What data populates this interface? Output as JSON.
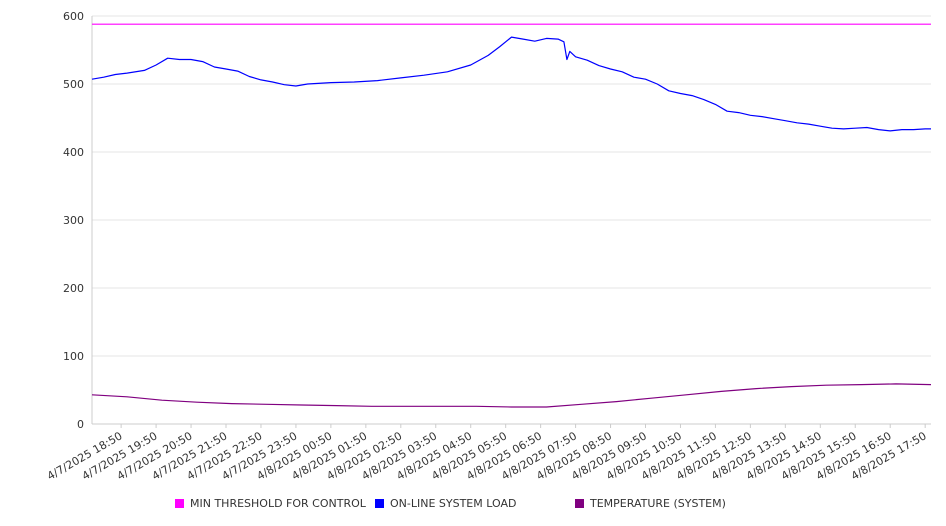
{
  "chart_data": {
    "type": "line",
    "y_ticks": [
      "0",
      "100",
      "200",
      "300",
      "400",
      "500",
      "600"
    ],
    "ylim": [
      0,
      600
    ],
    "grid": true,
    "legend_position": "bottom",
    "x_tick_labels": [
      "4/7/2025 18:50",
      "4/7/2025 19:50",
      "4/7/2025 20:50",
      "4/7/2025 21:50",
      "4/7/2025 22:50",
      "4/7/2025 23:50",
      "4/8/2025 00:50",
      "4/8/2025 01:50",
      "4/8/2025 02:50",
      "4/8/2025 03:50",
      "4/8/2025 04:50",
      "4/8/2025 05:50",
      "4/8/2025 06:50",
      "4/8/2025 07:50",
      "4/8/2025 08:50",
      "4/8/2025 09:50",
      "4/8/2025 10:50",
      "4/8/2025 11:50",
      "4/8/2025 12:50",
      "4/8/2025 13:50",
      "4/8/2025 14:50",
      "4/8/2025 15:50",
      "4/8/2025 16:50",
      "4/8/2025 17:50"
    ],
    "x_start": "4/7/2025 18:00",
    "x_end": "4/8/2025 18:00",
    "series": [
      {
        "name": "MIN THRESHOLD FOR CONTROL",
        "color": "#ff00ff",
        "points": [
          [
            "4/7/2025 18:00",
            588
          ],
          [
            "4/8/2025 18:00",
            588
          ]
        ]
      },
      {
        "name": "ON-LINE SYSTEM LOAD",
        "color": "#0000ff",
        "points": [
          [
            "4/7/2025 18:00",
            507
          ],
          [
            "4/7/2025 18:20",
            510
          ],
          [
            "4/7/2025 18:40",
            514
          ],
          [
            "4/7/2025 19:00",
            516
          ],
          [
            "4/7/2025 19:30",
            520
          ],
          [
            "4/7/2025 19:50",
            528
          ],
          [
            "4/7/2025 20:10",
            538
          ],
          [
            "4/7/2025 20:30",
            536
          ],
          [
            "4/7/2025 20:50",
            536
          ],
          [
            "4/7/2025 21:10",
            533
          ],
          [
            "4/7/2025 21:30",
            525
          ],
          [
            "4/7/2025 21:50",
            522
          ],
          [
            "4/7/2025 22:10",
            519
          ],
          [
            "4/7/2025 22:30",
            511
          ],
          [
            "4/7/2025 22:50",
            506
          ],
          [
            "4/7/2025 23:10",
            503
          ],
          [
            "4/7/2025 23:30",
            499
          ],
          [
            "4/7/2025 23:50",
            497
          ],
          [
            "4/8/2025 00:10",
            500
          ],
          [
            "4/8/2025 00:50",
            502
          ],
          [
            "4/8/2025 01:30",
            503
          ],
          [
            "4/8/2025 02:10",
            505
          ],
          [
            "4/8/2025 02:50",
            509
          ],
          [
            "4/8/2025 03:30",
            513
          ],
          [
            "4/8/2025 04:10",
            518
          ],
          [
            "4/8/2025 04:50",
            528
          ],
          [
            "4/8/2025 05:20",
            542
          ],
          [
            "4/8/2025 05:40",
            555
          ],
          [
            "4/8/2025 06:00",
            569
          ],
          [
            "4/8/2025 06:20",
            566
          ],
          [
            "4/8/2025 06:40",
            563
          ],
          [
            "4/8/2025 07:00",
            567
          ],
          [
            "4/8/2025 07:20",
            566
          ],
          [
            "4/8/2025 07:30",
            562
          ],
          [
            "4/8/2025 07:35",
            536
          ],
          [
            "4/8/2025 07:40",
            548
          ],
          [
            "4/8/2025 07:50",
            540
          ],
          [
            "4/8/2025 08:10",
            535
          ],
          [
            "4/8/2025 08:30",
            527
          ],
          [
            "4/8/2025 08:50",
            522
          ],
          [
            "4/8/2025 09:10",
            518
          ],
          [
            "4/8/2025 09:30",
            510
          ],
          [
            "4/8/2025 09:50",
            507
          ],
          [
            "4/8/2025 10:10",
            500
          ],
          [
            "4/8/2025 10:30",
            490
          ],
          [
            "4/8/2025 10:50",
            486
          ],
          [
            "4/8/2025 11:10",
            483
          ],
          [
            "4/8/2025 11:30",
            477
          ],
          [
            "4/8/2025 11:50",
            470
          ],
          [
            "4/8/2025 12:10",
            460
          ],
          [
            "4/8/2025 12:30",
            458
          ],
          [
            "4/8/2025 12:50",
            454
          ],
          [
            "4/8/2025 13:10",
            452
          ],
          [
            "4/8/2025 13:30",
            449
          ],
          [
            "4/8/2025 13:50",
            446
          ],
          [
            "4/8/2025 14:10",
            443
          ],
          [
            "4/8/2025 14:30",
            441
          ],
          [
            "4/8/2025 14:50",
            438
          ],
          [
            "4/8/2025 15:10",
            435
          ],
          [
            "4/8/2025 15:30",
            434
          ],
          [
            "4/8/2025 15:50",
            435
          ],
          [
            "4/8/2025 16:10",
            436
          ],
          [
            "4/8/2025 16:30",
            433
          ],
          [
            "4/8/2025 16:50",
            431
          ],
          [
            "4/8/2025 17:10",
            433
          ],
          [
            "4/8/2025 17:30",
            433
          ],
          [
            "4/8/2025 17:50",
            434
          ],
          [
            "4/8/2025 18:00",
            434
          ]
        ]
      },
      {
        "name": "TEMPERATURE (SYSTEM)",
        "color": "#800080",
        "points": [
          [
            "4/7/2025 18:00",
            43
          ],
          [
            "4/7/2025 19:00",
            40
          ],
          [
            "4/7/2025 20:00",
            35
          ],
          [
            "4/7/2025 21:00",
            32
          ],
          [
            "4/7/2025 22:00",
            30
          ],
          [
            "4/7/2025 23:00",
            29
          ],
          [
            "4/8/2025 00:00",
            28
          ],
          [
            "4/8/2025 01:00",
            27
          ],
          [
            "4/8/2025 02:00",
            26
          ],
          [
            "4/8/2025 03:00",
            26
          ],
          [
            "4/8/2025 04:00",
            26
          ],
          [
            "4/8/2025 05:00",
            26
          ],
          [
            "4/8/2025 06:00",
            25
          ],
          [
            "4/8/2025 07:00",
            25
          ],
          [
            "4/8/2025 08:00",
            29
          ],
          [
            "4/8/2025 09:00",
            33
          ],
          [
            "4/8/2025 10:00",
            38
          ],
          [
            "4/8/2025 11:00",
            43
          ],
          [
            "4/8/2025 12:00",
            48
          ],
          [
            "4/8/2025 13:00",
            52
          ],
          [
            "4/8/2025 14:00",
            55
          ],
          [
            "4/8/2025 15:00",
            57
          ],
          [
            "4/8/2025 16:00",
            58
          ],
          [
            "4/8/2025 17:00",
            59
          ],
          [
            "4/8/2025 18:00",
            58
          ]
        ]
      }
    ]
  }
}
